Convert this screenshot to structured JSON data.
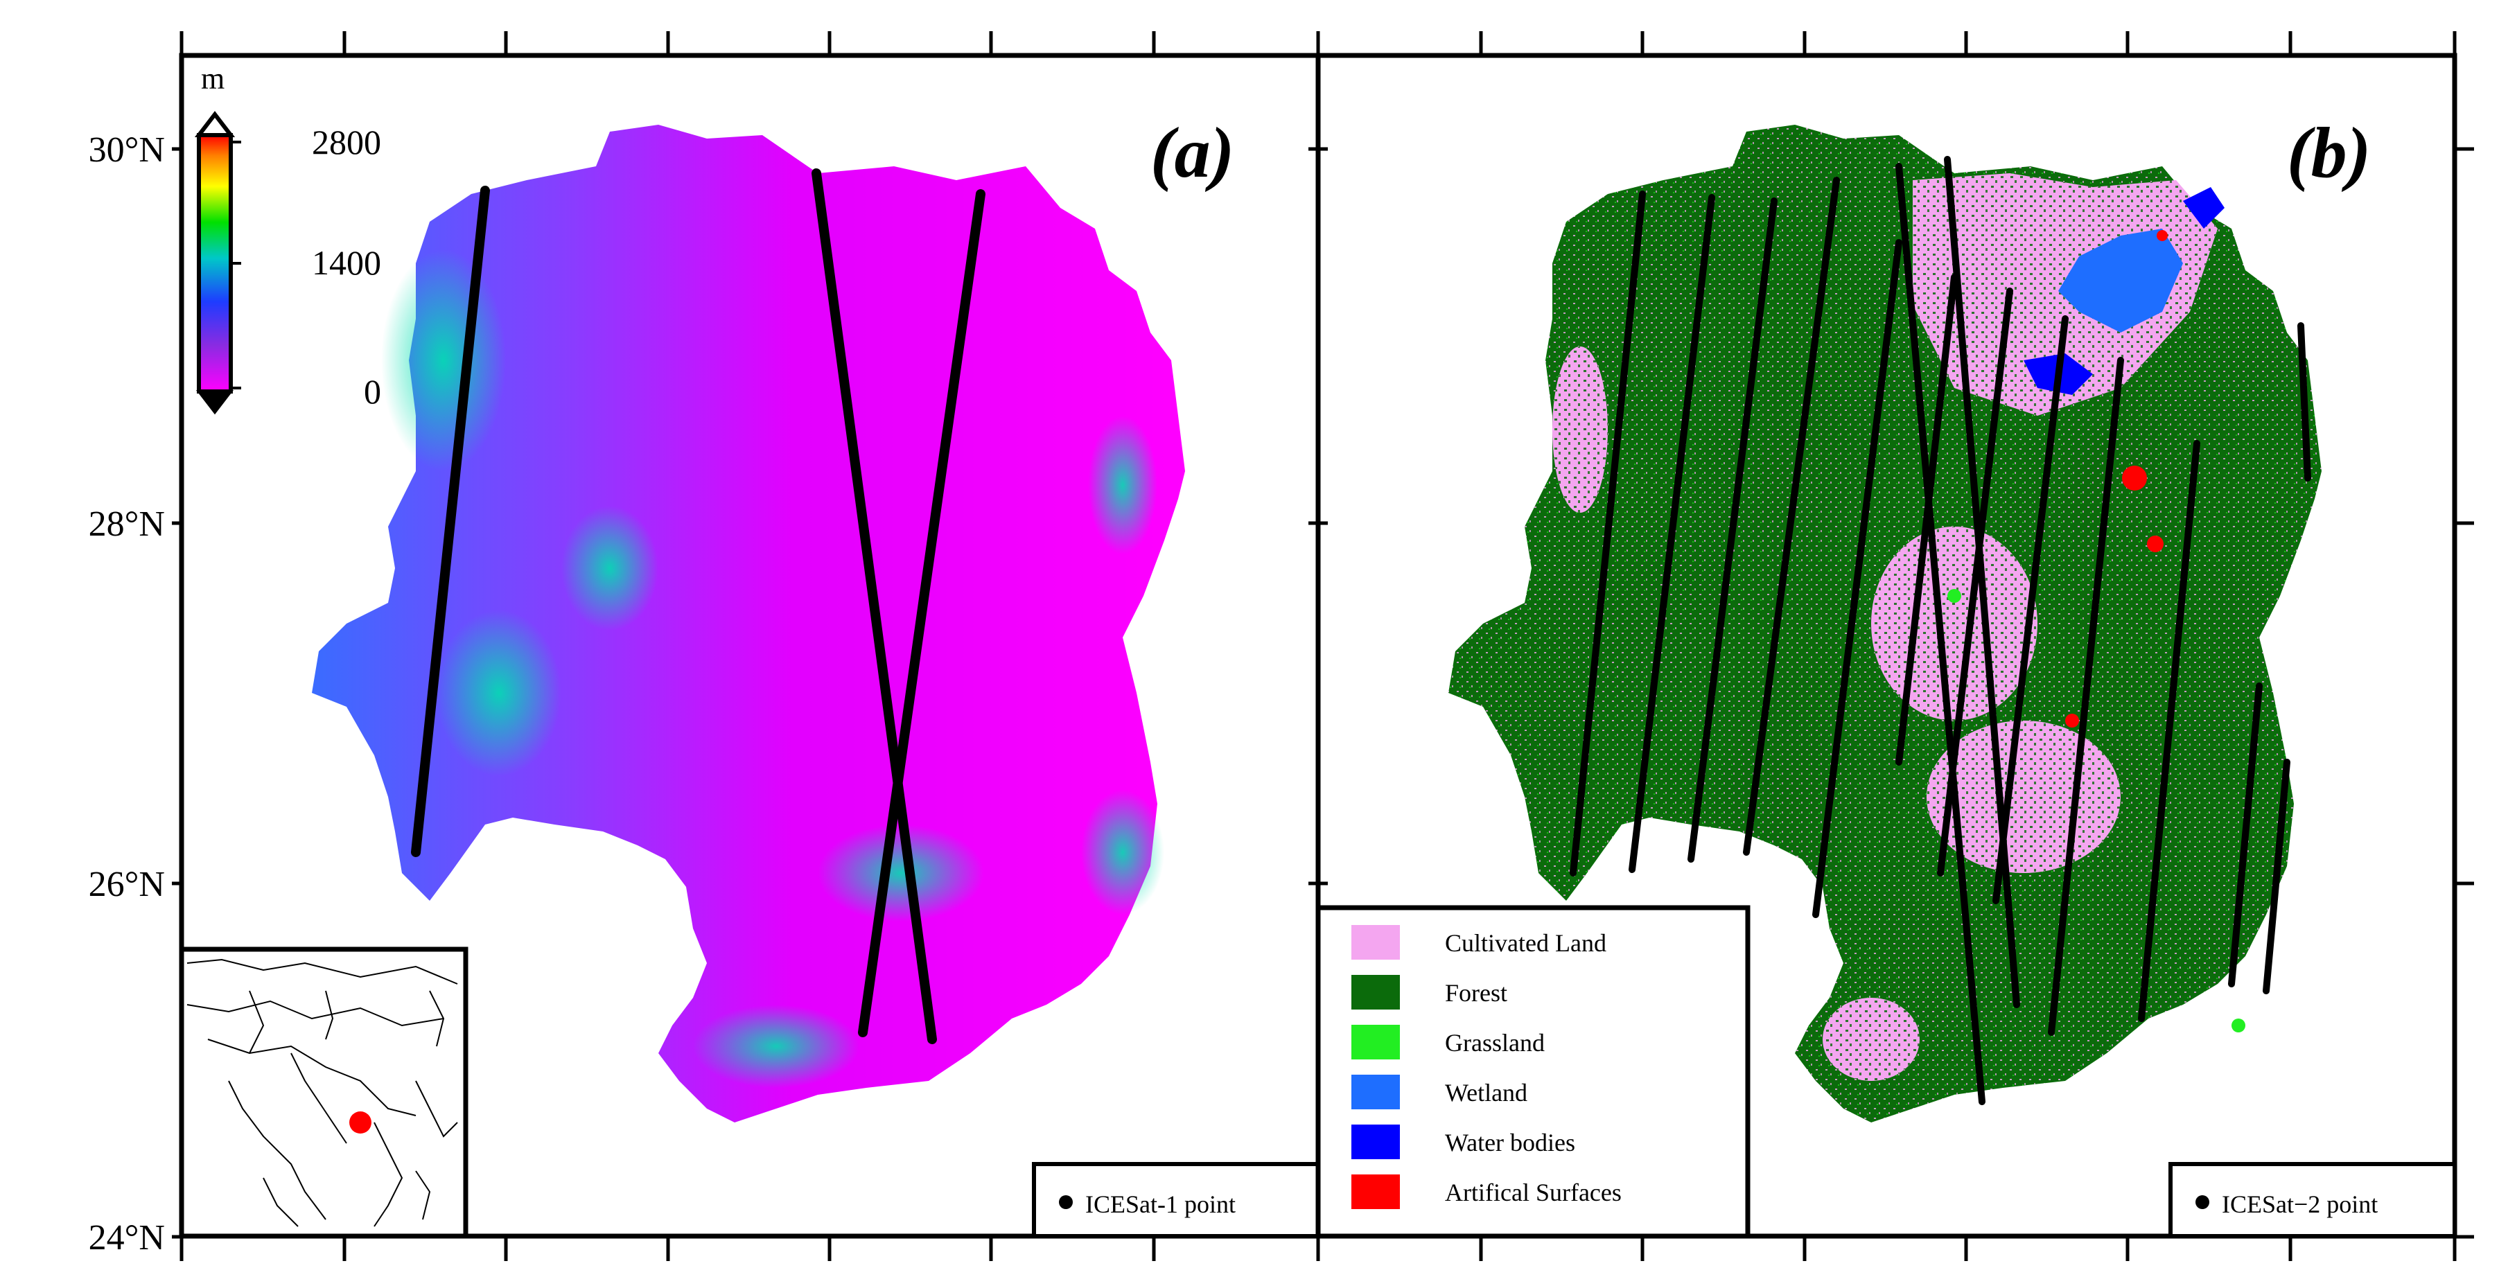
{
  "colors": {
    "frame": "#000000",
    "dem_low": "#ff00ff",
    "dem_mid": "#8a3cff",
    "dem_high": "#00d2a0",
    "cultivated_land": "#f4a6f0",
    "forest": "#0b6b0b",
    "grassland": "#22ee22",
    "wetland": "#1e6eff",
    "water_bodies": "#0000ff",
    "artificial_surfaces": "#ff0000"
  },
  "axes": {
    "y_ticks": [
      "30°N",
      "28°N",
      "26°N",
      "24°N"
    ]
  },
  "panel_a": {
    "label": "(a)",
    "colorbar": {
      "unit": "m",
      "ticks": [
        "2800",
        "1400",
        "0"
      ]
    },
    "legend_label": "ICESat-1 point",
    "icons": {
      "track": "satellite-track-icon",
      "inset": "asia-locator-map-icon"
    }
  },
  "panel_b": {
    "label": "(b)",
    "legend_label": "ICESat−2 point",
    "landcover_legend": [
      {
        "label": "Cultivated Land",
        "color": "#f4a6f0"
      },
      {
        "label": "Forest",
        "color": "#0b6b0b"
      },
      {
        "label": "Grassland",
        "color": "#22ee22"
      },
      {
        "label": "Wetland",
        "color": "#1e6eff"
      },
      {
        "label": "Water bodies",
        "color": "#0000ff"
      },
      {
        "label": "Artifical Surfaces",
        "color": "#ff0000"
      }
    ]
  }
}
